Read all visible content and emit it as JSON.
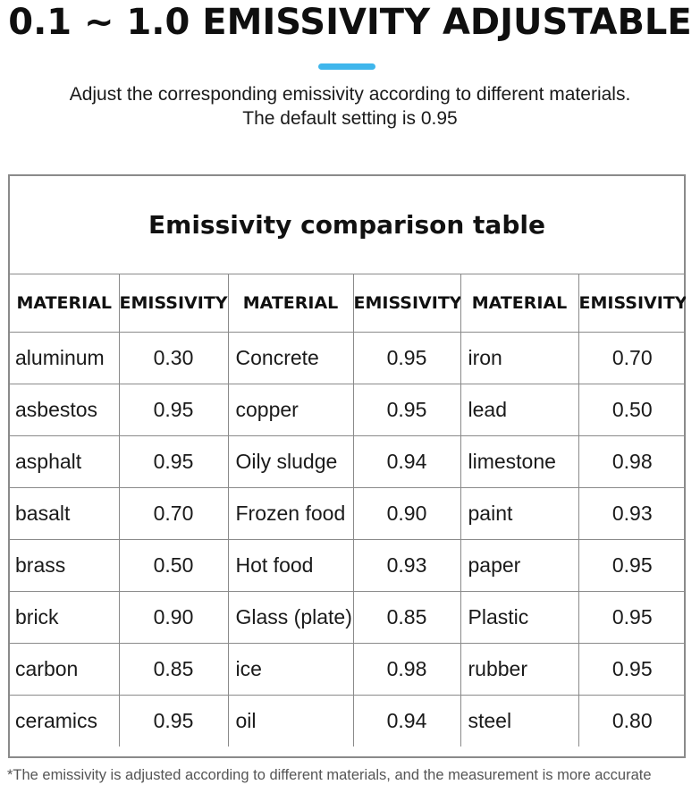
{
  "header": {
    "title": "0.1 ~ 1.0 EMISSIVITY ADJUSTABLE",
    "subtitle_line1": "Adjust the corresponding emissivity according to different materials.",
    "subtitle_line2": "The default setting is 0.95"
  },
  "colors": {
    "accent": "#3fb6ec"
  },
  "table": {
    "caption": "Emissivity comparison table",
    "headers": [
      "MATERIAL",
      "EMISSIVITY",
      "MATERIAL",
      "EMISSIVITY",
      "MATERIAL",
      "EMISSIVITY"
    ],
    "rows": [
      [
        "aluminum",
        "0.30",
        "Concrete",
        "0.95",
        "iron",
        "0.70"
      ],
      [
        "asbestos",
        "0.95",
        "copper",
        "0.95",
        "lead",
        "0.50"
      ],
      [
        "asphalt",
        "0.95",
        "Oily sludge",
        "0.94",
        "limestone",
        "0.98"
      ],
      [
        "basalt",
        "0.70",
        "Frozen food",
        "0.90",
        "paint",
        "0.93"
      ],
      [
        "brass",
        "0.50",
        "Hot food",
        "0.93",
        "paper",
        "0.95"
      ],
      [
        "brick",
        "0.90",
        "Glass (plate)",
        "0.85",
        "Plastic",
        "0.95"
      ],
      [
        "carbon",
        "0.85",
        "ice",
        "0.98",
        "rubber",
        "0.95"
      ],
      [
        "ceramics",
        "0.95",
        "oil",
        "0.94",
        "steel",
        "0.80"
      ]
    ]
  },
  "footnote": "*The emissivity is adjusted according to different materials, and the measurement is more accurate"
}
